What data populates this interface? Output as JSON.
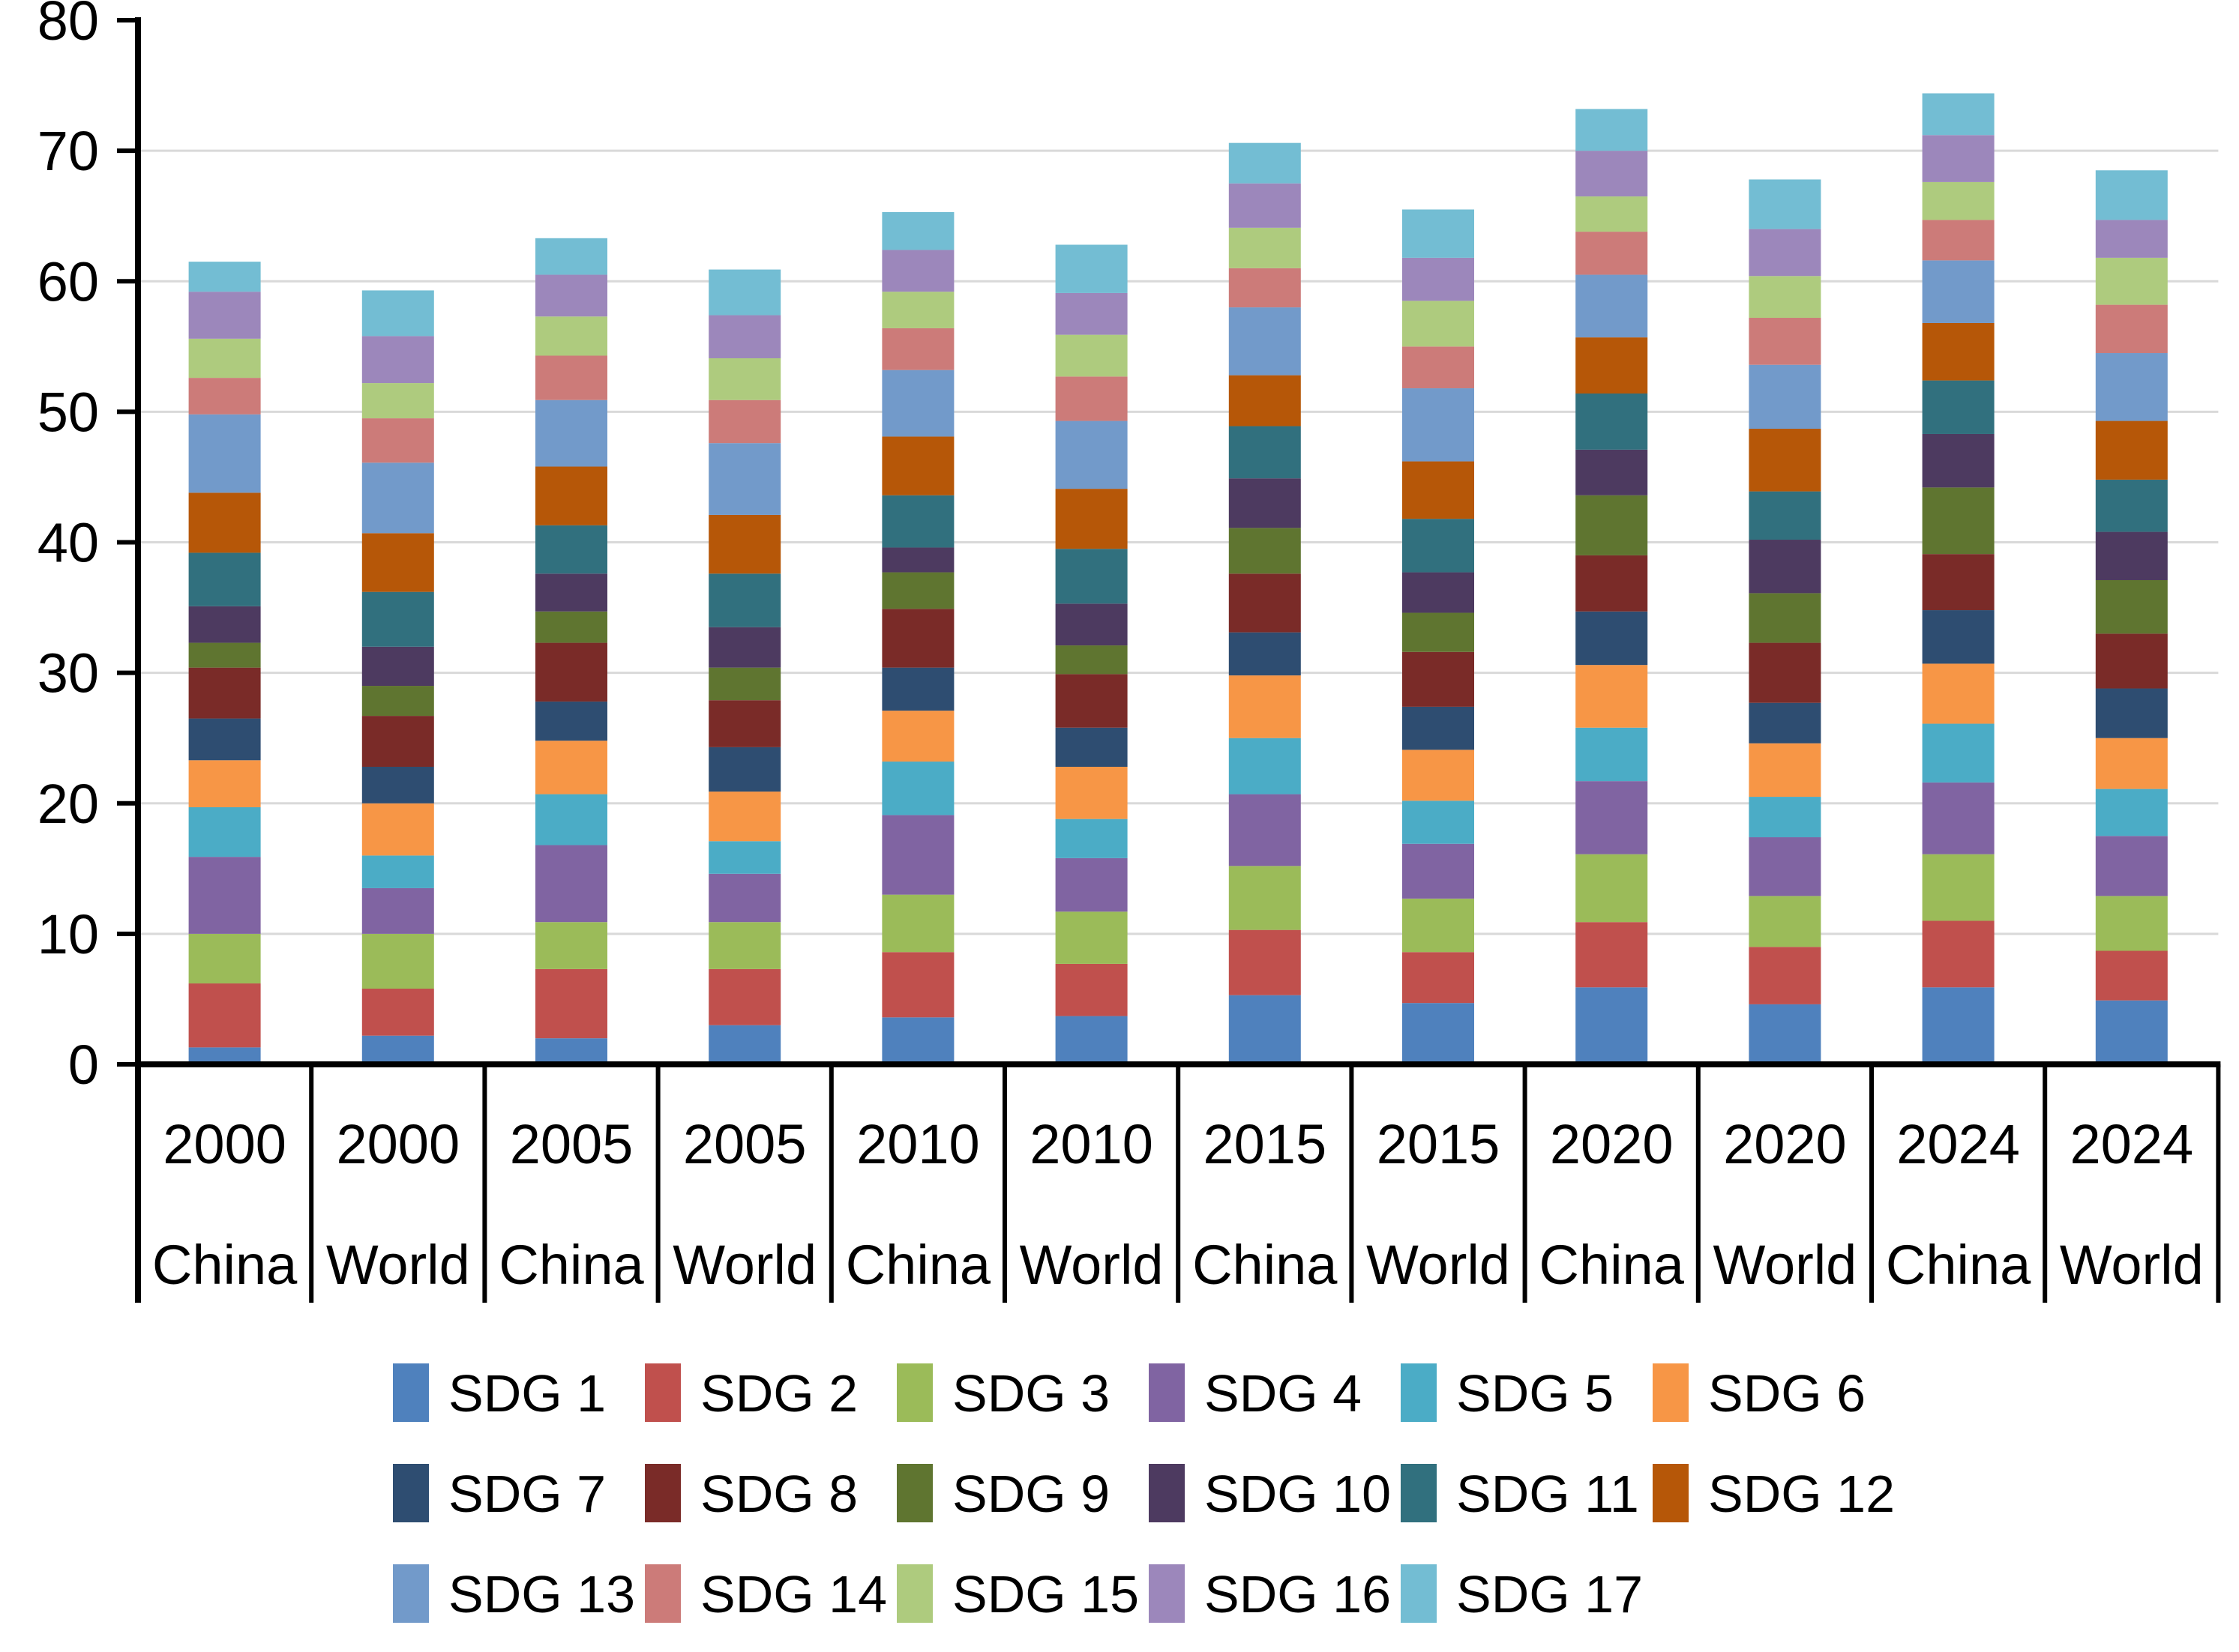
{
  "chart_data": {
    "type": "bar",
    "stacked": true,
    "title": "",
    "xlabel": "",
    "ylabel": "",
    "categories": [
      {
        "year": "2000",
        "region": "China"
      },
      {
        "year": "2000",
        "region": "World"
      },
      {
        "year": "2005",
        "region": "China"
      },
      {
        "year": "2005",
        "region": "World"
      },
      {
        "year": "2010",
        "region": "China"
      },
      {
        "year": "2010",
        "region": "World"
      },
      {
        "year": "2015",
        "region": "China"
      },
      {
        "year": "2015",
        "region": "World"
      },
      {
        "year": "2020",
        "region": "China"
      },
      {
        "year": "2020",
        "region": "World"
      },
      {
        "year": "2024",
        "region": "China"
      },
      {
        "year": "2024",
        "region": "World"
      }
    ],
    "series": [
      {
        "name": "SDG 1",
        "color": "#4F81BD",
        "values": [
          1.3,
          2.2,
          2.0,
          3.0,
          3.6,
          3.7,
          5.3,
          4.7,
          5.9,
          4.6,
          5.9,
          4.9
        ]
      },
      {
        "name": "SDG 2",
        "color": "#C0504D",
        "values": [
          4.9,
          3.6,
          5.3,
          4.3,
          5.0,
          4.0,
          5.0,
          3.9,
          5.0,
          4.4,
          5.1,
          3.8
        ]
      },
      {
        "name": "SDG 3",
        "color": "#9BBB59",
        "values": [
          3.8,
          4.2,
          3.6,
          3.6,
          4.4,
          4.0,
          4.9,
          4.1,
          5.2,
          3.9,
          5.1,
          4.2
        ]
      },
      {
        "name": "SDG 4",
        "color": "#8064A2",
        "values": [
          5.9,
          3.5,
          5.9,
          3.7,
          6.1,
          4.1,
          5.5,
          4.2,
          5.6,
          4.5,
          5.5,
          4.6
        ]
      },
      {
        "name": "SDG 5",
        "color": "#4BACC6",
        "values": [
          3.8,
          2.5,
          3.9,
          2.5,
          4.1,
          3.0,
          4.3,
          3.3,
          4.1,
          3.1,
          4.5,
          3.6
        ]
      },
      {
        "name": "SDG 6",
        "color": "#F79646",
        "values": [
          3.6,
          4.0,
          4.1,
          3.8,
          3.9,
          4.0,
          4.8,
          3.9,
          4.8,
          4.1,
          4.6,
          3.9
        ]
      },
      {
        "name": "SDG 7",
        "color": "#2E4D71",
        "values": [
          3.2,
          2.8,
          3.0,
          3.4,
          3.3,
          3.0,
          3.3,
          3.3,
          4.1,
          3.1,
          4.1,
          3.8
        ]
      },
      {
        "name": "SDG 8",
        "color": "#7A2B28",
        "values": [
          3.9,
          3.9,
          4.5,
          3.6,
          4.5,
          4.1,
          4.5,
          4.2,
          4.3,
          4.6,
          4.3,
          4.2
        ]
      },
      {
        "name": "SDG 9",
        "color": "#5F7530",
        "values": [
          1.9,
          2.3,
          2.4,
          2.5,
          2.8,
          2.2,
          3.5,
          3.0,
          4.6,
          3.8,
          5.1,
          4.1
        ]
      },
      {
        "name": "SDG 10",
        "color": "#4D3A60",
        "values": [
          2.8,
          3.0,
          2.9,
          3.1,
          1.9,
          3.2,
          3.8,
          3.1,
          3.5,
          4.1,
          4.1,
          3.7
        ]
      },
      {
        "name": "SDG 11",
        "color": "#31707E",
        "values": [
          4.1,
          4.2,
          3.7,
          4.1,
          4.0,
          4.2,
          4.0,
          4.1,
          4.3,
          3.7,
          4.1,
          4.0
        ]
      },
      {
        "name": "SDG 12",
        "color": "#B65708",
        "values": [
          4.6,
          4.5,
          4.5,
          4.5,
          4.5,
          4.6,
          3.9,
          4.4,
          4.3,
          4.8,
          4.4,
          4.5
        ]
      },
      {
        "name": "SDG 13",
        "color": "#729ACA",
        "values": [
          6.0,
          5.4,
          5.1,
          5.5,
          5.1,
          5.2,
          5.2,
          5.6,
          4.8,
          4.9,
          4.8,
          5.2
        ]
      },
      {
        "name": "SDG 14",
        "color": "#CC7B79",
        "values": [
          2.8,
          3.4,
          3.4,
          3.3,
          3.2,
          3.4,
          3.0,
          3.2,
          3.3,
          3.6,
          3.1,
          3.7
        ]
      },
      {
        "name": "SDG 15",
        "color": "#AECB7E",
        "values": [
          3.0,
          2.7,
          3.0,
          3.2,
          2.8,
          3.2,
          3.1,
          3.5,
          2.7,
          3.2,
          2.9,
          3.6
        ]
      },
      {
        "name": "SDG 16",
        "color": "#9C87BB",
        "values": [
          3.6,
          3.6,
          3.2,
          3.3,
          3.2,
          3.2,
          3.4,
          3.3,
          3.5,
          3.6,
          3.6,
          2.9
        ]
      },
      {
        "name": "SDG 17",
        "color": "#73BDD3",
        "values": [
          2.3,
          3.5,
          2.8,
          3.5,
          2.9,
          3.7,
          3.1,
          3.7,
          3.2,
          3.8,
          3.2,
          3.8
        ]
      }
    ],
    "stack_totals": [
      61.5,
      59.3,
      63.3,
      60.9,
      65.3,
      62.8,
      70.6,
      65.5,
      73.2,
      67.8,
      74.4,
      68.5
    ],
    "y_axis": {
      "min": 0,
      "max": 80,
      "step": 10,
      "tick_labels": [
        "0",
        "10",
        "20",
        "30",
        "40",
        "50",
        "60",
        "70",
        "80"
      ]
    },
    "grid": true,
    "legend_position": "bottom",
    "legend_rows": [
      6,
      6,
      5
    ],
    "colors": {
      "gridline": "#D9D9D9",
      "axis": "#000000",
      "background": "#FFFFFF"
    }
  }
}
